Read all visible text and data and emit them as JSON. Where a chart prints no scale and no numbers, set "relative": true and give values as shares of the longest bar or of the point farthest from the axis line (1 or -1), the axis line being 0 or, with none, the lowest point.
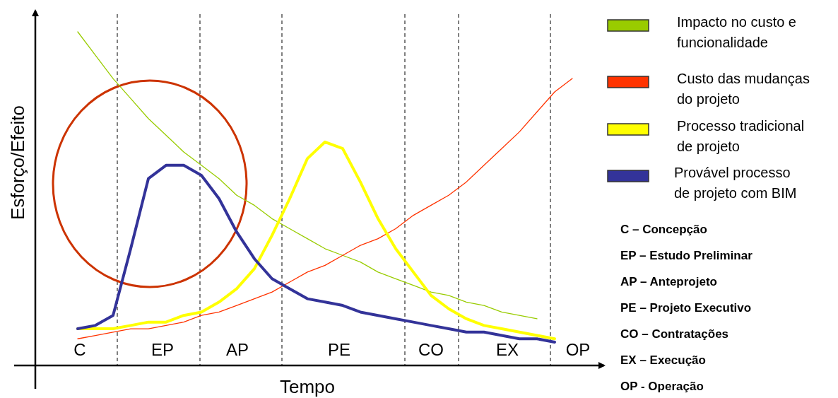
{
  "chart_data": {
    "type": "line",
    "relative": true,
    "xlabel": "Tempo",
    "ylabel": "Esforço/Efeito",
    "legend": "right",
    "categories": [
      null,
      null,
      null,
      null,
      null,
      null,
      null,
      null,
      null,
      null,
      null,
      null,
      null,
      null,
      null,
      null,
      null,
      null,
      null,
      null,
      null,
      null,
      null,
      null,
      null,
      null,
      null,
      null,
      null
    ],
    "series": [
      {
        "name": "Impacto no custo e\nfuncionalidade",
        "color": "#99cc00",
        "values": [
          1.0,
          0.93,
          0.86,
          0.8,
          0.74,
          0.69,
          0.64,
          0.6,
          0.56,
          0.51,
          0.48,
          0.44,
          0.41,
          0.38,
          0.35,
          0.33,
          0.31,
          0.28,
          0.26,
          0.24,
          0.22,
          0.21,
          0.19,
          0.18,
          0.16,
          0.15,
          0.14,
          null,
          null
        ]
      },
      {
        "name": "Custo das mudanças\ndo projeto",
        "color": "#ff3300",
        "values": [
          0.08,
          0.09,
          0.1,
          0.11,
          0.11,
          0.12,
          0.13,
          0.15,
          0.16,
          0.18,
          0.2,
          0.22,
          0.25,
          0.28,
          0.3,
          0.33,
          0.36,
          0.38,
          0.41,
          0.45,
          0.48,
          0.51,
          0.55,
          0.6,
          0.65,
          0.7,
          0.76,
          0.82,
          0.86
        ]
      },
      {
        "name": "Processo tradicional\nde projeto",
        "color": "#ffff00",
        "values": [
          0.11,
          0.11,
          0.11,
          0.12,
          0.13,
          0.13,
          0.15,
          0.16,
          0.19,
          0.23,
          0.29,
          0.39,
          0.5,
          0.62,
          0.67,
          0.65,
          0.55,
          0.44,
          0.35,
          0.28,
          0.21,
          0.17,
          0.14,
          0.12,
          0.11,
          0.1,
          0.09,
          0.08,
          null
        ]
      },
      {
        "name": "Provável processo\nde projeto com BIM",
        "color": "#333399",
        "values": [
          0.11,
          0.12,
          0.15,
          0.35,
          0.56,
          0.6,
          0.6,
          0.57,
          0.5,
          0.4,
          0.32,
          0.26,
          0.23,
          0.2,
          0.19,
          0.18,
          0.16,
          0.15,
          0.14,
          0.13,
          0.12,
          0.11,
          0.1,
          0.1,
          0.09,
          0.08,
          0.08,
          0.07,
          null
        ]
      }
    ],
    "annotations": [
      "C",
      "EP",
      "AP",
      "PE",
      "CO",
      "EX",
      "OP",
      "C – Concepção",
      "EP – Estudo Preliminar",
      "AP – Anteprojeto",
      "PE – Projeto Executivo",
      "CO – Contratações",
      "EX – Execução",
      "OP - Operação"
    ]
  }
}
